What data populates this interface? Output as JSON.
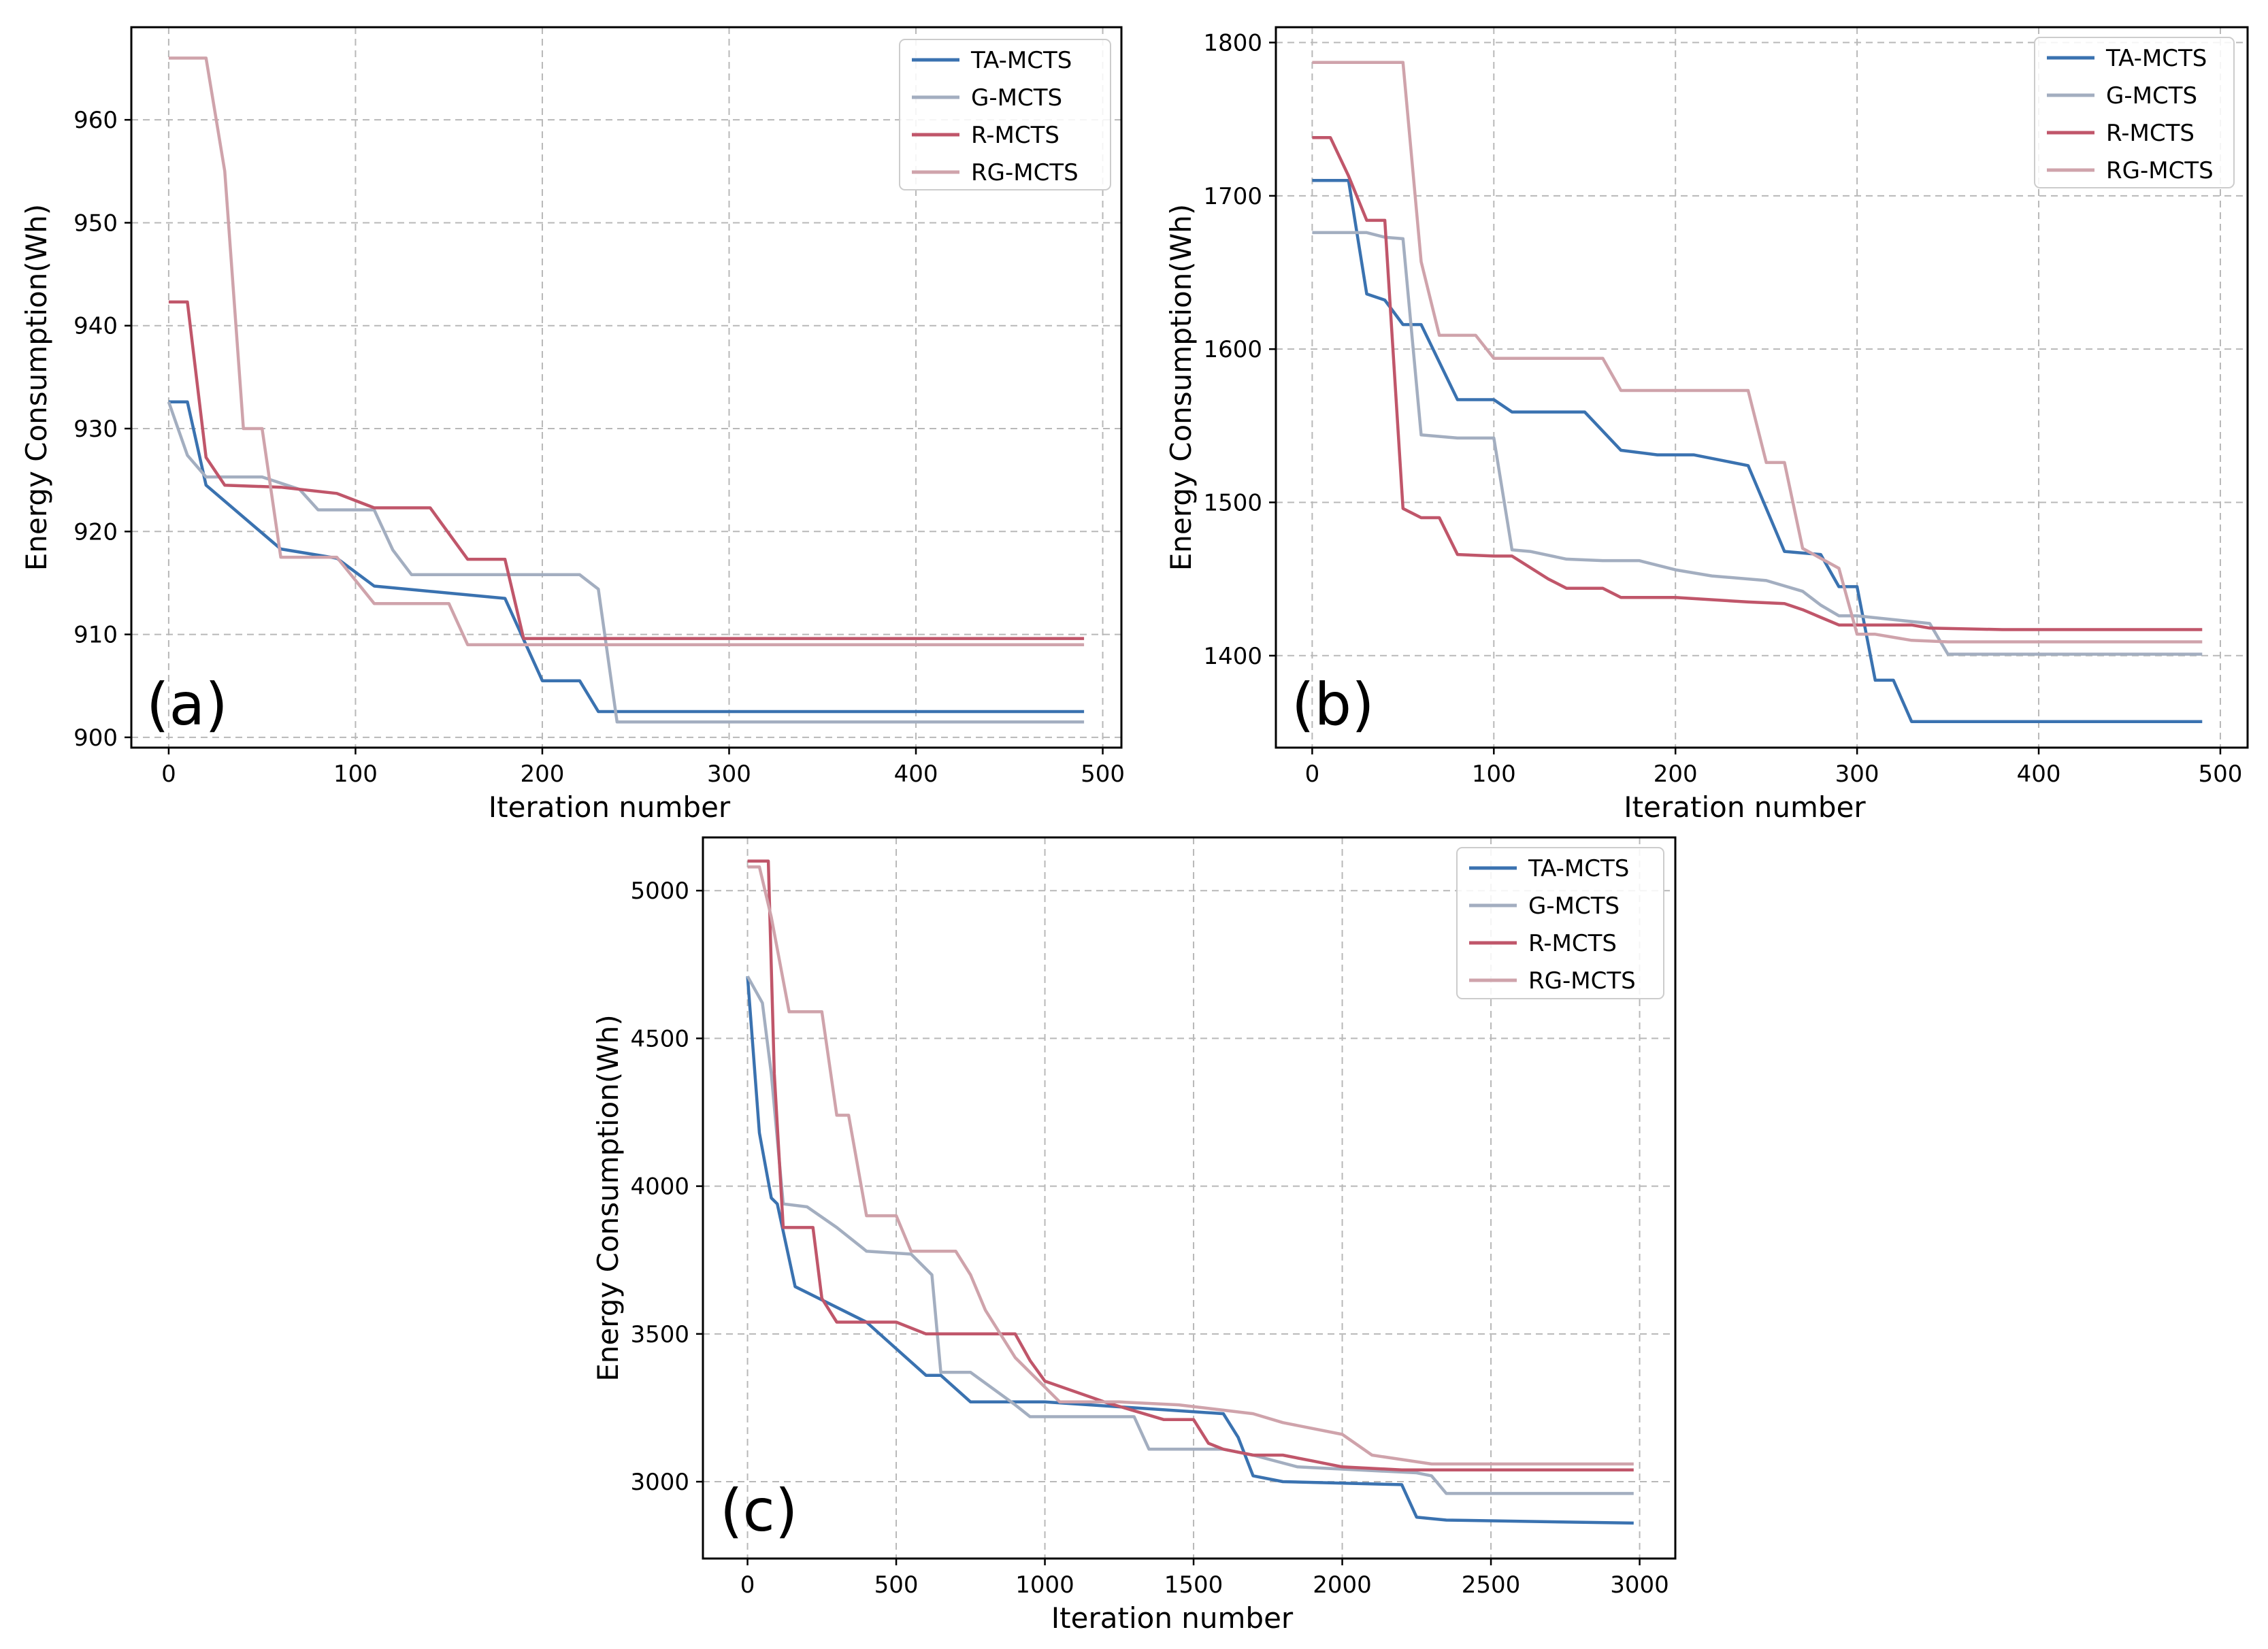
{
  "colors": {
    "TA-MCTS": "#3a72b0",
    "G-MCTS": "#a3aec0",
    "R-MCTS": "#c0566a",
    "RG-MCTS": "#cfa3ab"
  },
  "chart_data": [
    {
      "type": "line",
      "panel_label": "(a)",
      "xlabel": "Iteration number",
      "ylabel": "Energy Consumption(Wh)",
      "xlim": [
        -20,
        510
      ],
      "ylim": [
        899,
        969
      ],
      "xticks": [
        0,
        100,
        200,
        300,
        400,
        500
      ],
      "yticks": [
        900,
        910,
        920,
        930,
        940,
        950,
        960
      ],
      "grid": true,
      "legend_position": "top-right",
      "series": [
        {
          "name": "TA-MCTS",
          "x": [
            0,
            5,
            10,
            20,
            60,
            90,
            110,
            180,
            200,
            220,
            230,
            490
          ],
          "y": [
            932.6,
            932.6,
            932.6,
            924.5,
            918.3,
            917.4,
            914.7,
            913.5,
            905.5,
            905.5,
            902.5,
            902.5
          ]
        },
        {
          "name": "G-MCTS",
          "x": [
            0,
            10,
            20,
            50,
            70,
            80,
            110,
            120,
            130,
            220,
            230,
            240,
            490
          ],
          "y": [
            932.6,
            927.4,
            925.3,
            925.3,
            924.1,
            922.1,
            922.1,
            918.2,
            915.8,
            915.8,
            914.4,
            901.5,
            901.5
          ]
        },
        {
          "name": "R-MCTS",
          "x": [
            0,
            10,
            20,
            30,
            60,
            90,
            110,
            140,
            160,
            180,
            190,
            200,
            490
          ],
          "y": [
            942.3,
            942.3,
            927.2,
            924.5,
            924.3,
            923.7,
            922.3,
            922.3,
            917.3,
            917.3,
            909.6,
            909.6,
            909.6
          ]
        },
        {
          "name": "RG-MCTS",
          "x": [
            0,
            20,
            30,
            40,
            50,
            60,
            90,
            110,
            150,
            160,
            180,
            200,
            490
          ],
          "y": [
            966.0,
            966.0,
            955.0,
            930.0,
            930.0,
            917.5,
            917.5,
            913.0,
            913.0,
            909.0,
            909.0,
            909.0,
            909.0
          ]
        }
      ]
    },
    {
      "type": "line",
      "panel_label": "(b)",
      "xlabel": "Iteration number",
      "ylabel": "Energy Consumption(Wh)",
      "xlim": [
        -20,
        515
      ],
      "ylim": [
        1340,
        1810
      ],
      "xticks": [
        0,
        100,
        200,
        300,
        400,
        500
      ],
      "yticks": [
        1400,
        1500,
        1600,
        1700,
        1800
      ],
      "grid": true,
      "legend_position": "top-right",
      "series": [
        {
          "name": "TA-MCTS",
          "x": [
            0,
            20,
            30,
            40,
            50,
            60,
            80,
            100,
            110,
            150,
            170,
            190,
            210,
            240,
            260,
            280,
            290,
            300,
            310,
            320,
            330,
            490
          ],
          "y": [
            1710,
            1710,
            1636,
            1632,
            1616,
            1616,
            1567,
            1567,
            1559,
            1559,
            1534,
            1531,
            1531,
            1524,
            1468,
            1466,
            1445,
            1445,
            1384,
            1384,
            1357,
            1357
          ]
        },
        {
          "name": "G-MCTS",
          "x": [
            0,
            30,
            40,
            50,
            60,
            80,
            100,
            110,
            120,
            140,
            160,
            180,
            200,
            220,
            250,
            270,
            280,
            290,
            300,
            340,
            350,
            490
          ],
          "y": [
            1676,
            1676,
            1673,
            1672,
            1544,
            1542,
            1542,
            1469,
            1468,
            1463,
            1462,
            1462,
            1456,
            1452,
            1449,
            1442,
            1433,
            1426,
            1426,
            1421,
            1401,
            1401
          ]
        },
        {
          "name": "R-MCTS",
          "x": [
            0,
            10,
            20,
            30,
            40,
            50,
            60,
            70,
            80,
            100,
            110,
            130,
            140,
            160,
            170,
            200,
            240,
            260,
            270,
            280,
            290,
            310,
            330,
            340,
            380,
            490
          ],
          "y": [
            1738,
            1738,
            1713,
            1684,
            1684,
            1496,
            1490,
            1490,
            1466,
            1465,
            1465,
            1450,
            1444,
            1444,
            1438,
            1438,
            1435,
            1434,
            1430,
            1425,
            1420,
            1420,
            1420,
            1418,
            1417,
            1417
          ]
        },
        {
          "name": "RG-MCTS",
          "x": [
            0,
            30,
            50,
            60,
            70,
            90,
            100,
            160,
            170,
            210,
            240,
            250,
            260,
            270,
            290,
            300,
            310,
            330,
            350,
            490
          ],
          "y": [
            1787,
            1787,
            1787,
            1657,
            1609,
            1609,
            1594,
            1594,
            1573,
            1573,
            1573,
            1526,
            1526,
            1470,
            1457,
            1414,
            1414,
            1410,
            1409,
            1409
          ]
        }
      ]
    },
    {
      "type": "line",
      "panel_label": "(c)",
      "xlabel": "Iteration number",
      "ylabel": "Energy Consumption(Wh)",
      "xlim": [
        -150,
        3120
      ],
      "ylim": [
        2740,
        5180
      ],
      "xticks": [
        0,
        500,
        1000,
        1500,
        2000,
        2500,
        3000
      ],
      "yticks": [
        3000,
        3500,
        4000,
        4500,
        5000
      ],
      "grid": true,
      "legend_position": "top-right",
      "series": [
        {
          "name": "TA-MCTS",
          "x": [
            0,
            40,
            80,
            100,
            160,
            400,
            600,
            650,
            750,
            800,
            1000,
            1600,
            1650,
            1700,
            1800,
            2200,
            2250,
            2350,
            2980
          ],
          "y": [
            4710,
            4180,
            3960,
            3940,
            3660,
            3540,
            3360,
            3360,
            3270,
            3270,
            3270,
            3230,
            3150,
            3020,
            3000,
            2990,
            2880,
            2870,
            2860
          ]
        },
        {
          "name": "G-MCTS",
          "x": [
            0,
            50,
            80,
            120,
            200,
            300,
            400,
            550,
            620,
            650,
            750,
            900,
            950,
            1050,
            1300,
            1350,
            1600,
            1700,
            1850,
            2250,
            2300,
            2350,
            2980
          ],
          "y": [
            4710,
            4620,
            4380,
            3940,
            3930,
            3860,
            3780,
            3770,
            3700,
            3370,
            3370,
            3260,
            3220,
            3220,
            3220,
            3110,
            3110,
            3090,
            3050,
            3030,
            3020,
            2960,
            2960
          ]
        },
        {
          "name": "R-MCTS",
          "x": [
            0,
            70,
            90,
            120,
            220,
            250,
            300,
            500,
            600,
            900,
            950,
            1000,
            1200,
            1300,
            1400,
            1500,
            1550,
            1600,
            1700,
            1800,
            1900,
            2000,
            2200,
            2980
          ],
          "y": [
            5100,
            5100,
            4380,
            3860,
            3860,
            3620,
            3540,
            3540,
            3500,
            3500,
            3410,
            3340,
            3270,
            3240,
            3210,
            3210,
            3130,
            3110,
            3090,
            3090,
            3070,
            3050,
            3040,
            3040
          ]
        },
        {
          "name": "RG-MCTS",
          "x": [
            0,
            40,
            80,
            140,
            250,
            300,
            340,
            400,
            500,
            550,
            700,
            750,
            800,
            900,
            1050,
            1250,
            1450,
            1700,
            1800,
            2000,
            2100,
            2300,
            2980
          ],
          "y": [
            5080,
            5080,
            4910,
            4590,
            4590,
            4240,
            4240,
            3900,
            3900,
            3780,
            3780,
            3700,
            3580,
            3420,
            3270,
            3270,
            3260,
            3230,
            3200,
            3160,
            3090,
            3060,
            3060
          ]
        }
      ]
    }
  ]
}
